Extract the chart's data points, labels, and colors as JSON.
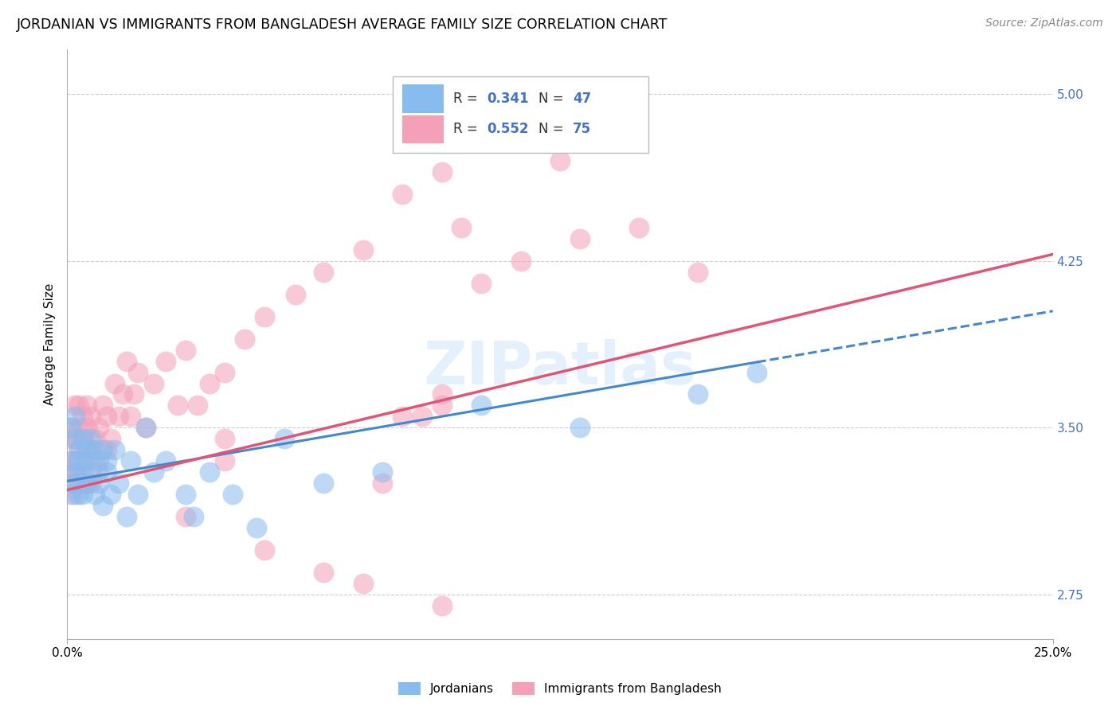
{
  "title": "JORDANIAN VS IMMIGRANTS FROM BANGLADESH AVERAGE FAMILY SIZE CORRELATION CHART",
  "source": "Source: ZipAtlas.com",
  "ylabel": "Average Family Size",
  "r_jordanian": 0.341,
  "n_jordanian": 47,
  "r_bangladesh": 0.552,
  "n_bangladesh": 75,
  "color_jordanian": "#88BBEE",
  "color_bangladesh": "#F4A0B8",
  "line_color_jordanian": "#4488CC",
  "line_color_bangladesh": "#E05575",
  "watermark": "ZIPatlas",
  "xlim": [
    0.0,
    0.25
  ],
  "ylim": [
    2.55,
    5.2
  ],
  "yticks_right": [
    2.75,
    3.5,
    4.25,
    5.0
  ],
  "legend_labels": [
    "Jordanians",
    "Immigrants from Bangladesh"
  ],
  "blue_text_color": "#4472C4",
  "jordanian_x": [
    0.001,
    0.001,
    0.001,
    0.002,
    0.002,
    0.002,
    0.002,
    0.003,
    0.003,
    0.003,
    0.004,
    0.004,
    0.004,
    0.005,
    0.005,
    0.005,
    0.006,
    0.006,
    0.007,
    0.007,
    0.008,
    0.008,
    0.009,
    0.009,
    0.01,
    0.01,
    0.011,
    0.012,
    0.013,
    0.015,
    0.016,
    0.018,
    0.02,
    0.022,
    0.025,
    0.03,
    0.032,
    0.036,
    0.042,
    0.048,
    0.055,
    0.065,
    0.08,
    0.105,
    0.13,
    0.16,
    0.175
  ],
  "jordanian_y": [
    3.35,
    3.2,
    3.5,
    3.45,
    3.3,
    3.25,
    3.55,
    3.4,
    3.2,
    3.35,
    3.45,
    3.3,
    3.2,
    3.4,
    3.25,
    3.35,
    3.45,
    3.3,
    3.2,
    3.4,
    3.35,
    3.25,
    3.15,
    3.4,
    3.3,
    3.35,
    3.2,
    3.4,
    3.25,
    3.1,
    3.35,
    3.2,
    3.5,
    3.3,
    3.35,
    3.2,
    3.1,
    3.3,
    3.2,
    3.05,
    3.45,
    3.25,
    3.3,
    3.6,
    3.5,
    3.65,
    3.75
  ],
  "bangladesh_x": [
    0.001,
    0.001,
    0.001,
    0.001,
    0.002,
    0.002,
    0.002,
    0.002,
    0.002,
    0.003,
    0.003,
    0.003,
    0.003,
    0.003,
    0.004,
    0.004,
    0.004,
    0.004,
    0.005,
    0.005,
    0.005,
    0.005,
    0.006,
    0.006,
    0.006,
    0.007,
    0.007,
    0.008,
    0.008,
    0.009,
    0.01,
    0.01,
    0.011,
    0.012,
    0.013,
    0.014,
    0.015,
    0.016,
    0.017,
    0.018,
    0.02,
    0.022,
    0.025,
    0.028,
    0.03,
    0.033,
    0.036,
    0.04,
    0.045,
    0.05,
    0.058,
    0.065,
    0.075,
    0.085,
    0.095,
    0.105,
    0.115,
    0.13,
    0.145,
    0.16,
    0.075,
    0.095,
    0.05,
    0.065,
    0.03,
    0.08,
    0.04,
    0.095,
    0.04,
    0.09,
    0.095,
    0.12,
    0.125,
    0.085,
    0.1
  ],
  "bangladesh_y": [
    3.35,
    3.5,
    3.25,
    3.45,
    3.3,
    3.6,
    3.2,
    3.45,
    3.35,
    3.5,
    3.25,
    3.4,
    3.6,
    3.3,
    3.45,
    3.25,
    3.55,
    3.35,
    3.4,
    3.5,
    3.25,
    3.6,
    3.4,
    3.25,
    3.55,
    3.35,
    3.45,
    3.5,
    3.3,
    3.6,
    3.4,
    3.55,
    3.45,
    3.7,
    3.55,
    3.65,
    3.8,
    3.55,
    3.65,
    3.75,
    3.5,
    3.7,
    3.8,
    3.6,
    3.85,
    3.6,
    3.7,
    3.75,
    3.9,
    4.0,
    4.1,
    4.2,
    4.3,
    3.55,
    3.65,
    4.15,
    4.25,
    4.35,
    4.4,
    4.2,
    2.8,
    2.7,
    2.95,
    2.85,
    3.1,
    3.25,
    3.45,
    3.6,
    3.35,
    3.55,
    4.65,
    4.8,
    4.7,
    4.55,
    4.4
  ]
}
